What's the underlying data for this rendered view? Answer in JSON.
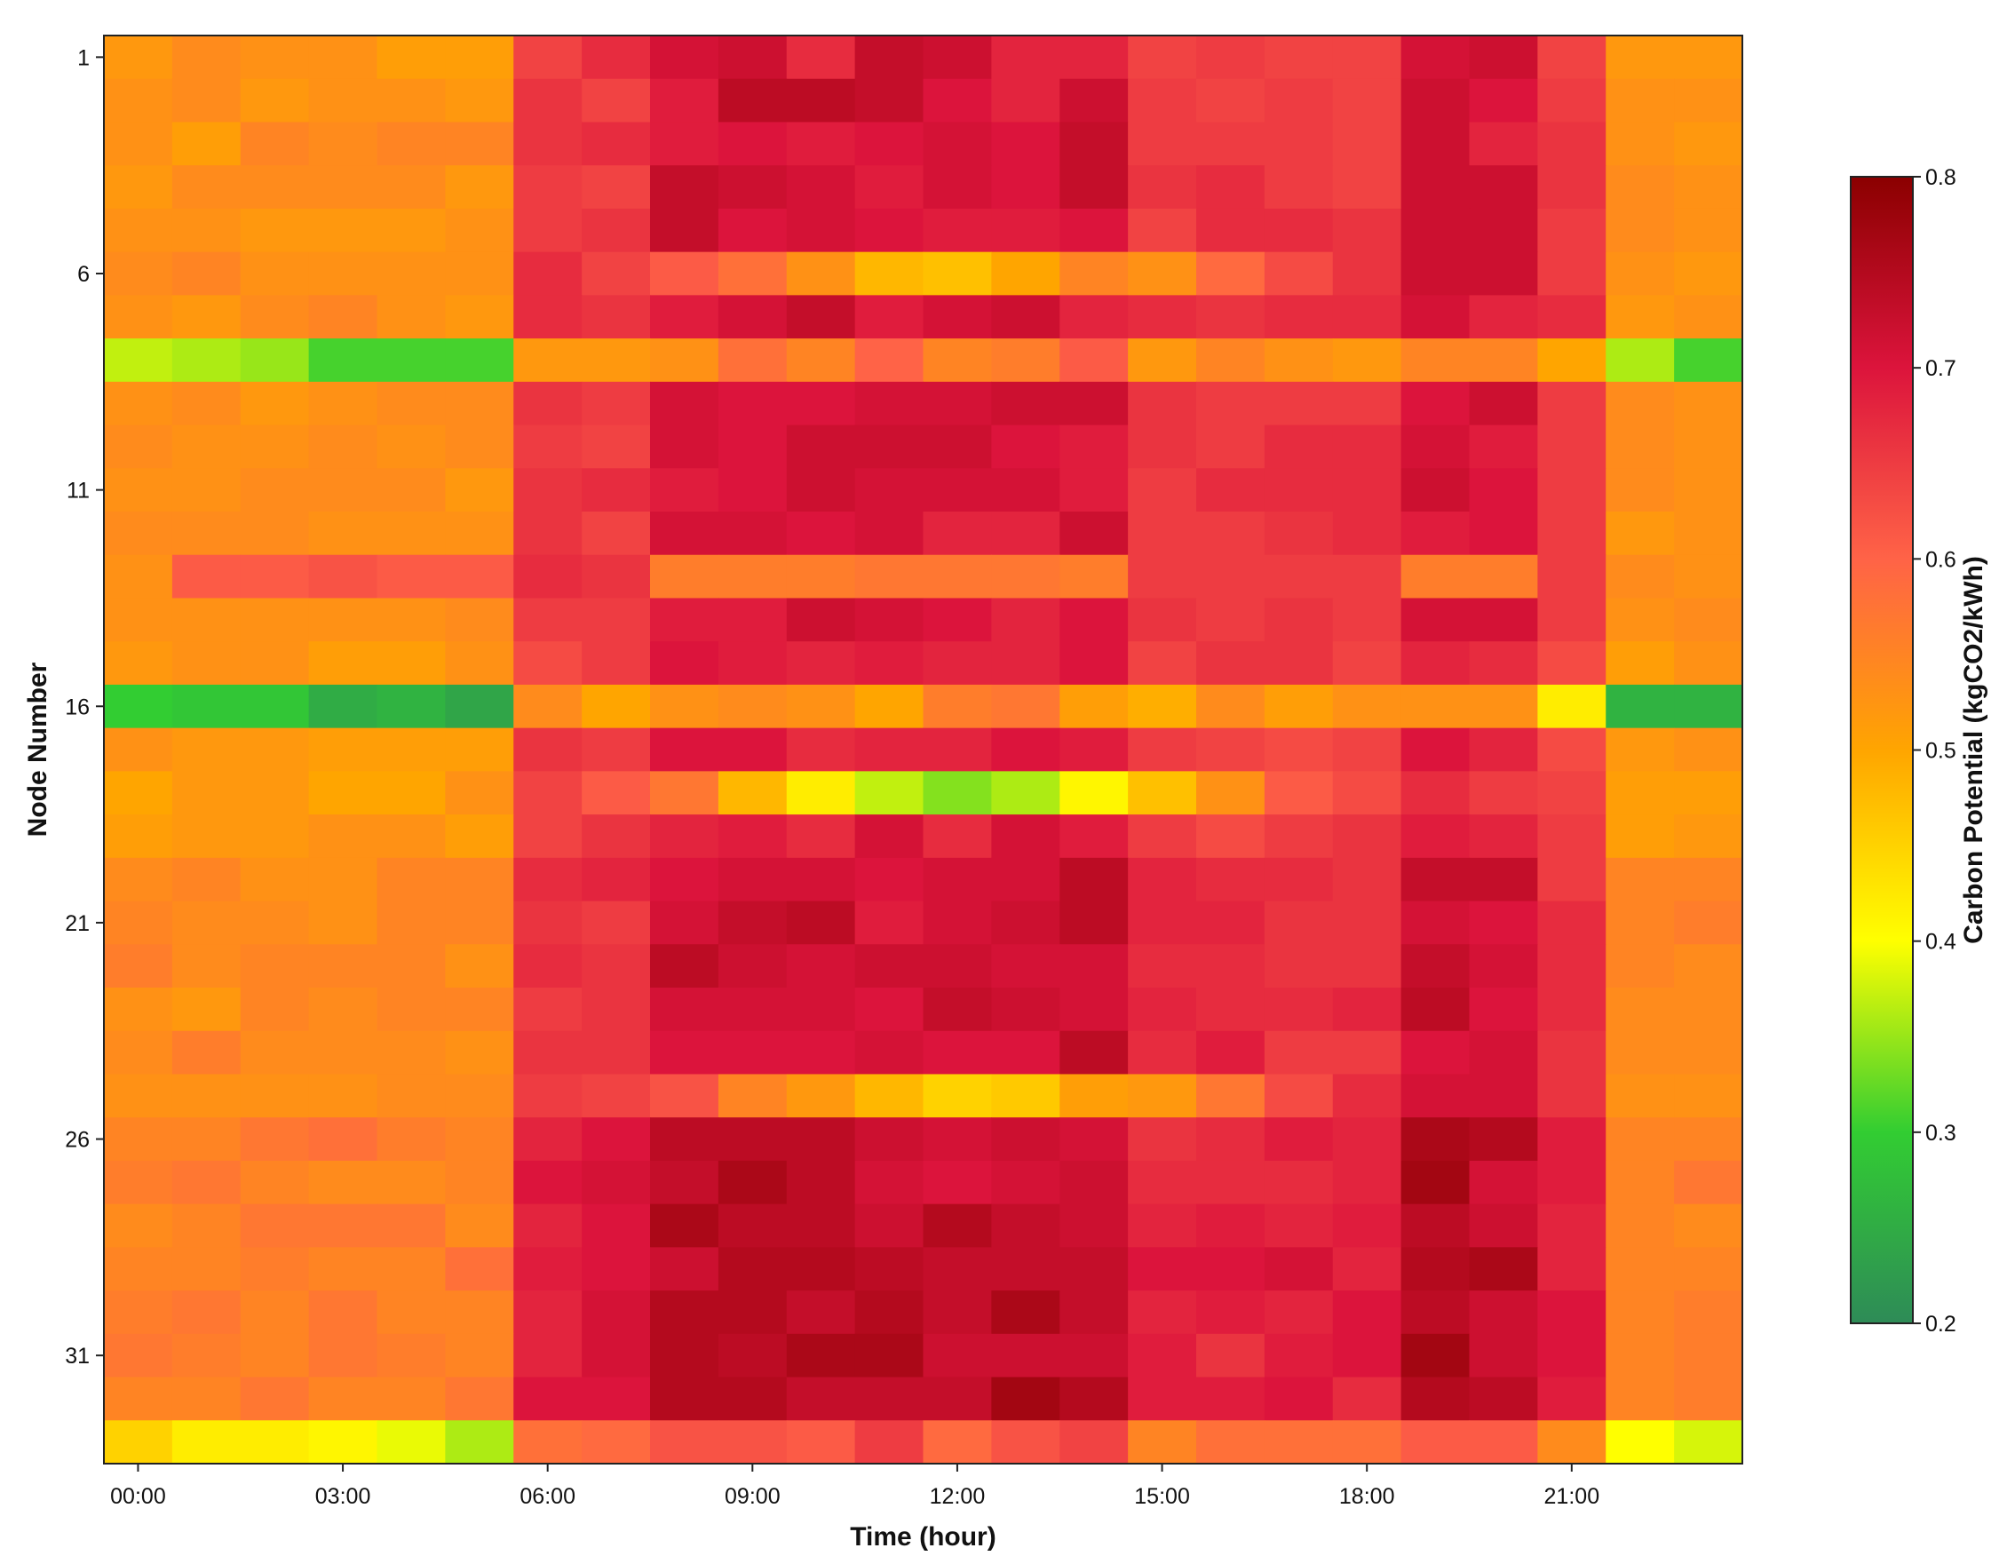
{
  "chart_data": {
    "type": "heatmap",
    "title": "",
    "xlabel": "Time (hour)",
    "ylabel": "Node Number",
    "x_tick_labels": [
      "00:00",
      "03:00",
      "06:00",
      "09:00",
      "12:00",
      "15:00",
      "18:00",
      "21:00"
    ],
    "x_tick_hours": [
      0,
      3,
      6,
      9,
      12,
      15,
      18,
      21
    ],
    "y_tick_labels": [
      "1",
      "6",
      "11",
      "16",
      "21",
      "26",
      "31"
    ],
    "y_tick_nodes": [
      1,
      6,
      11,
      16,
      21,
      26,
      31
    ],
    "hours": [
      0,
      1,
      2,
      3,
      4,
      5,
      6,
      7,
      8,
      9,
      10,
      11,
      12,
      13,
      14,
      15,
      16,
      17,
      18,
      19,
      20,
      21,
      22,
      23
    ],
    "nodes": [
      1,
      2,
      3,
      4,
      5,
      6,
      7,
      8,
      9,
      10,
      11,
      12,
      13,
      14,
      15,
      16,
      17,
      18,
      19,
      20,
      21,
      22,
      23,
      24,
      25,
      26,
      27,
      28,
      29,
      30,
      31,
      32,
      33
    ],
    "colorbar": {
      "label": "Carbon Potential (kgCO2/kWh)",
      "range": [
        0.2,
        0.8
      ],
      "tick_values": [
        0.2,
        0.3,
        0.4,
        0.5,
        0.6,
        0.7,
        0.8
      ],
      "tick_labels": [
        "0.2",
        "0.3",
        "0.4",
        "0.5",
        "0.6",
        "0.7",
        "0.8"
      ],
      "colormap": [
        "#2e8b57",
        "#32cd32",
        "#ffff00",
        "#ffa500",
        "#ff6347",
        "#dc143c",
        "#8b0000"
      ]
    },
    "values": [
      [
        0.52,
        0.54,
        0.53,
        0.53,
        0.51,
        0.51,
        0.64,
        0.67,
        0.71,
        0.72,
        0.67,
        0.73,
        0.72,
        0.68,
        0.68,
        0.64,
        0.65,
        0.64,
        0.64,
        0.71,
        0.72,
        0.64,
        0.52,
        0.52
      ],
      [
        0.53,
        0.54,
        0.52,
        0.53,
        0.53,
        0.52,
        0.66,
        0.64,
        0.69,
        0.74,
        0.74,
        0.73,
        0.7,
        0.68,
        0.72,
        0.65,
        0.64,
        0.65,
        0.64,
        0.72,
        0.7,
        0.65,
        0.53,
        0.53
      ],
      [
        0.53,
        0.51,
        0.55,
        0.54,
        0.55,
        0.55,
        0.66,
        0.67,
        0.69,
        0.7,
        0.69,
        0.7,
        0.71,
        0.7,
        0.73,
        0.65,
        0.65,
        0.65,
        0.64,
        0.72,
        0.68,
        0.66,
        0.53,
        0.52
      ],
      [
        0.52,
        0.54,
        0.54,
        0.54,
        0.54,
        0.52,
        0.65,
        0.64,
        0.73,
        0.72,
        0.71,
        0.69,
        0.71,
        0.7,
        0.73,
        0.66,
        0.67,
        0.65,
        0.64,
        0.72,
        0.72,
        0.66,
        0.54,
        0.53
      ],
      [
        0.53,
        0.53,
        0.52,
        0.52,
        0.52,
        0.53,
        0.65,
        0.66,
        0.73,
        0.7,
        0.71,
        0.7,
        0.69,
        0.69,
        0.7,
        0.64,
        0.67,
        0.67,
        0.66,
        0.72,
        0.72,
        0.65,
        0.54,
        0.53
      ],
      [
        0.54,
        0.55,
        0.53,
        0.53,
        0.53,
        0.53,
        0.67,
        0.64,
        0.61,
        0.58,
        0.53,
        0.48,
        0.47,
        0.5,
        0.55,
        0.53,
        0.59,
        0.63,
        0.66,
        0.72,
        0.72,
        0.65,
        0.53,
        0.52
      ],
      [
        0.53,
        0.52,
        0.54,
        0.55,
        0.53,
        0.52,
        0.67,
        0.66,
        0.69,
        0.71,
        0.73,
        0.69,
        0.71,
        0.72,
        0.68,
        0.67,
        0.66,
        0.67,
        0.67,
        0.71,
        0.68,
        0.67,
        0.52,
        0.53
      ],
      [
        0.37,
        0.36,
        0.35,
        0.31,
        0.31,
        0.31,
        0.52,
        0.52,
        0.53,
        0.58,
        0.55,
        0.6,
        0.55,
        0.56,
        0.61,
        0.52,
        0.55,
        0.53,
        0.52,
        0.55,
        0.55,
        0.5,
        0.36,
        0.31
      ],
      [
        0.53,
        0.54,
        0.52,
        0.53,
        0.54,
        0.54,
        0.66,
        0.65,
        0.71,
        0.7,
        0.7,
        0.71,
        0.71,
        0.72,
        0.72,
        0.66,
        0.65,
        0.65,
        0.65,
        0.7,
        0.72,
        0.65,
        0.54,
        0.53
      ],
      [
        0.54,
        0.53,
        0.53,
        0.54,
        0.53,
        0.54,
        0.65,
        0.64,
        0.71,
        0.7,
        0.72,
        0.72,
        0.72,
        0.7,
        0.69,
        0.66,
        0.65,
        0.67,
        0.67,
        0.71,
        0.69,
        0.65,
        0.54,
        0.53
      ],
      [
        0.53,
        0.53,
        0.54,
        0.54,
        0.54,
        0.52,
        0.66,
        0.67,
        0.69,
        0.7,
        0.72,
        0.71,
        0.71,
        0.71,
        0.69,
        0.65,
        0.67,
        0.67,
        0.67,
        0.72,
        0.7,
        0.65,
        0.54,
        0.53
      ],
      [
        0.54,
        0.54,
        0.54,
        0.53,
        0.53,
        0.53,
        0.66,
        0.64,
        0.71,
        0.71,
        0.7,
        0.71,
        0.68,
        0.68,
        0.72,
        0.65,
        0.65,
        0.66,
        0.67,
        0.69,
        0.7,
        0.65,
        0.52,
        0.53
      ],
      [
        0.53,
        0.61,
        0.61,
        0.62,
        0.61,
        0.61,
        0.67,
        0.66,
        0.56,
        0.56,
        0.56,
        0.57,
        0.57,
        0.57,
        0.56,
        0.65,
        0.65,
        0.65,
        0.65,
        0.56,
        0.56,
        0.65,
        0.54,
        0.53
      ],
      [
        0.53,
        0.53,
        0.53,
        0.53,
        0.53,
        0.54,
        0.65,
        0.65,
        0.69,
        0.69,
        0.72,
        0.71,
        0.7,
        0.68,
        0.7,
        0.66,
        0.65,
        0.66,
        0.65,
        0.71,
        0.71,
        0.65,
        0.53,
        0.54
      ],
      [
        0.52,
        0.53,
        0.53,
        0.51,
        0.51,
        0.53,
        0.63,
        0.65,
        0.7,
        0.69,
        0.68,
        0.69,
        0.68,
        0.68,
        0.7,
        0.64,
        0.66,
        0.66,
        0.64,
        0.68,
        0.67,
        0.63,
        0.51,
        0.53
      ],
      [
        0.3,
        0.29,
        0.29,
        0.25,
        0.26,
        0.24,
        0.54,
        0.5,
        0.53,
        0.54,
        0.53,
        0.5,
        0.56,
        0.57,
        0.51,
        0.49,
        0.54,
        0.51,
        0.53,
        0.53,
        0.53,
        0.42,
        0.26,
        0.26
      ],
      [
        0.53,
        0.52,
        0.52,
        0.51,
        0.51,
        0.51,
        0.66,
        0.65,
        0.7,
        0.7,
        0.67,
        0.68,
        0.68,
        0.7,
        0.69,
        0.65,
        0.64,
        0.63,
        0.64,
        0.7,
        0.68,
        0.63,
        0.52,
        0.53
      ],
      [
        0.5,
        0.52,
        0.52,
        0.5,
        0.5,
        0.53,
        0.64,
        0.61,
        0.57,
        0.48,
        0.42,
        0.37,
        0.34,
        0.36,
        0.41,
        0.47,
        0.53,
        0.61,
        0.63,
        0.67,
        0.65,
        0.64,
        0.51,
        0.51
      ],
      [
        0.51,
        0.52,
        0.52,
        0.53,
        0.53,
        0.51,
        0.64,
        0.66,
        0.68,
        0.69,
        0.67,
        0.71,
        0.67,
        0.71,
        0.69,
        0.65,
        0.63,
        0.65,
        0.66,
        0.69,
        0.68,
        0.65,
        0.51,
        0.52
      ],
      [
        0.54,
        0.55,
        0.53,
        0.53,
        0.55,
        0.55,
        0.67,
        0.68,
        0.7,
        0.71,
        0.71,
        0.7,
        0.71,
        0.71,
        0.74,
        0.68,
        0.67,
        0.67,
        0.66,
        0.73,
        0.73,
        0.65,
        0.55,
        0.55
      ],
      [
        0.55,
        0.54,
        0.54,
        0.53,
        0.55,
        0.55,
        0.66,
        0.65,
        0.71,
        0.73,
        0.74,
        0.69,
        0.71,
        0.72,
        0.74,
        0.68,
        0.68,
        0.66,
        0.66,
        0.71,
        0.7,
        0.67,
        0.55,
        0.56
      ],
      [
        0.56,
        0.54,
        0.55,
        0.55,
        0.55,
        0.53,
        0.67,
        0.66,
        0.74,
        0.72,
        0.71,
        0.72,
        0.72,
        0.71,
        0.71,
        0.67,
        0.67,
        0.66,
        0.66,
        0.73,
        0.71,
        0.67,
        0.55,
        0.54
      ],
      [
        0.53,
        0.52,
        0.55,
        0.54,
        0.55,
        0.55,
        0.65,
        0.66,
        0.71,
        0.71,
        0.71,
        0.7,
        0.73,
        0.72,
        0.71,
        0.68,
        0.67,
        0.67,
        0.68,
        0.74,
        0.7,
        0.67,
        0.54,
        0.54
      ],
      [
        0.54,
        0.56,
        0.54,
        0.54,
        0.54,
        0.53,
        0.66,
        0.66,
        0.7,
        0.7,
        0.7,
        0.71,
        0.7,
        0.7,
        0.74,
        0.67,
        0.69,
        0.65,
        0.65,
        0.7,
        0.71,
        0.66,
        0.54,
        0.54
      ],
      [
        0.53,
        0.53,
        0.53,
        0.53,
        0.54,
        0.54,
        0.65,
        0.64,
        0.62,
        0.55,
        0.52,
        0.48,
        0.45,
        0.46,
        0.51,
        0.52,
        0.57,
        0.63,
        0.67,
        0.71,
        0.71,
        0.66,
        0.53,
        0.53
      ],
      [
        0.55,
        0.55,
        0.57,
        0.58,
        0.56,
        0.55,
        0.68,
        0.7,
        0.74,
        0.74,
        0.74,
        0.72,
        0.71,
        0.72,
        0.71,
        0.66,
        0.67,
        0.69,
        0.68,
        0.76,
        0.75,
        0.69,
        0.55,
        0.55
      ],
      [
        0.56,
        0.57,
        0.55,
        0.54,
        0.54,
        0.55,
        0.7,
        0.71,
        0.73,
        0.76,
        0.74,
        0.71,
        0.7,
        0.71,
        0.72,
        0.67,
        0.67,
        0.67,
        0.68,
        0.77,
        0.71,
        0.69,
        0.55,
        0.57
      ],
      [
        0.54,
        0.55,
        0.57,
        0.57,
        0.57,
        0.54,
        0.68,
        0.7,
        0.76,
        0.74,
        0.74,
        0.72,
        0.75,
        0.73,
        0.72,
        0.68,
        0.69,
        0.68,
        0.69,
        0.74,
        0.72,
        0.68,
        0.55,
        0.54
      ],
      [
        0.55,
        0.55,
        0.56,
        0.55,
        0.55,
        0.58,
        0.69,
        0.7,
        0.72,
        0.75,
        0.75,
        0.74,
        0.73,
        0.73,
        0.73,
        0.7,
        0.7,
        0.71,
        0.68,
        0.75,
        0.76,
        0.68,
        0.55,
        0.55
      ],
      [
        0.56,
        0.57,
        0.55,
        0.57,
        0.55,
        0.55,
        0.68,
        0.71,
        0.75,
        0.75,
        0.73,
        0.75,
        0.73,
        0.76,
        0.73,
        0.68,
        0.69,
        0.68,
        0.7,
        0.74,
        0.72,
        0.7,
        0.55,
        0.56
      ],
      [
        0.57,
        0.56,
        0.55,
        0.57,
        0.56,
        0.55,
        0.68,
        0.71,
        0.75,
        0.74,
        0.76,
        0.76,
        0.72,
        0.72,
        0.72,
        0.69,
        0.66,
        0.69,
        0.7,
        0.77,
        0.72,
        0.7,
        0.55,
        0.56
      ],
      [
        0.55,
        0.55,
        0.57,
        0.55,
        0.55,
        0.57,
        0.7,
        0.7,
        0.75,
        0.75,
        0.73,
        0.73,
        0.73,
        0.77,
        0.75,
        0.69,
        0.69,
        0.7,
        0.67,
        0.75,
        0.74,
        0.69,
        0.55,
        0.56
      ],
      [
        0.45,
        0.42,
        0.42,
        0.41,
        0.39,
        0.36,
        0.58,
        0.59,
        0.62,
        0.62,
        0.61,
        0.65,
        0.59,
        0.62,
        0.64,
        0.55,
        0.58,
        0.58,
        0.58,
        0.61,
        0.61,
        0.54,
        0.4,
        0.38
      ]
    ]
  }
}
